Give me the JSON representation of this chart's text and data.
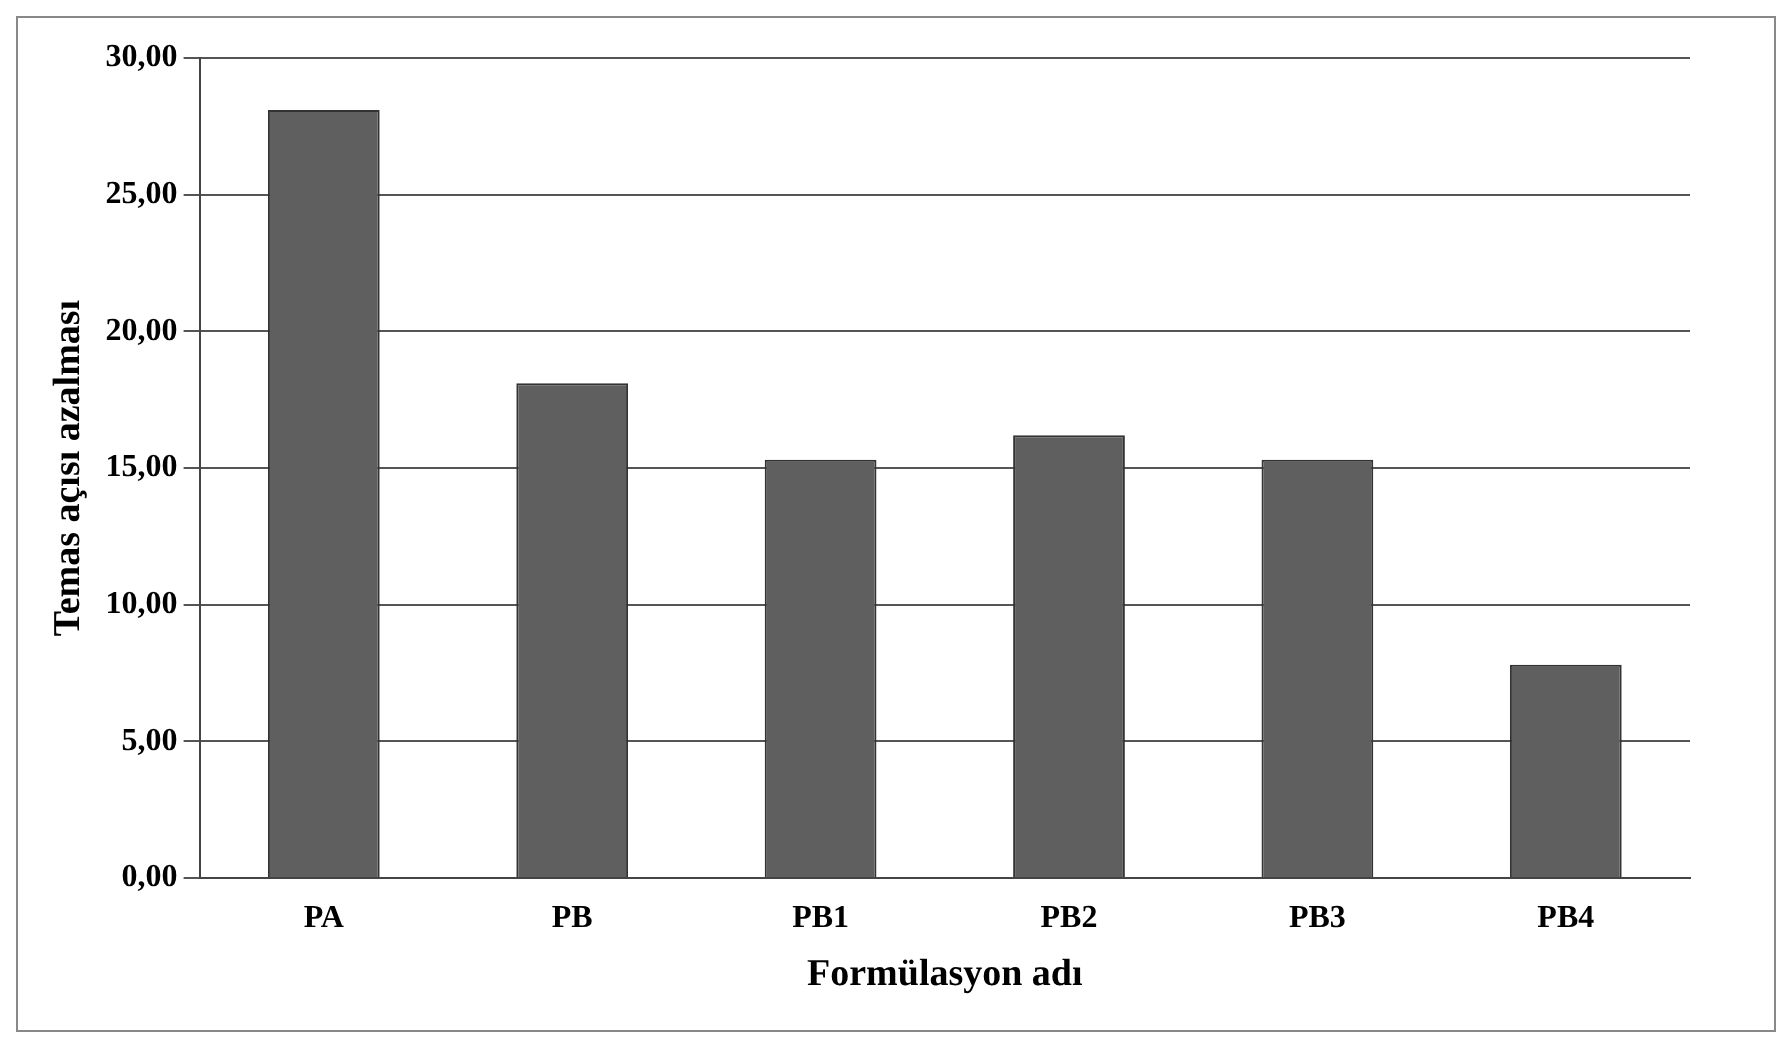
{
  "chart_data": {
    "type": "bar",
    "xlabel": "Formülasyon adı",
    "ylabel": "Temas açısı azalması",
    "categories": [
      "PA",
      "PB",
      "PB1",
      "PB2",
      "PB3",
      "PB4"
    ],
    "values": [
      28.1,
      18.1,
      15.3,
      16.2,
      15.3,
      7.8
    ],
    "color": "#5f5f5f",
    "ylim": [
      0,
      30
    ],
    "yticks": [
      {
        "value": 0,
        "label": "0,00"
      },
      {
        "value": 5,
        "label": "5,00"
      },
      {
        "value": 10,
        "label": "10,00"
      },
      {
        "value": 15,
        "label": "15,00"
      },
      {
        "value": 20,
        "label": "20,00"
      },
      {
        "value": 25,
        "label": "25,00"
      },
      {
        "value": 30,
        "label": "30,00"
      }
    ],
    "grid": "y"
  }
}
